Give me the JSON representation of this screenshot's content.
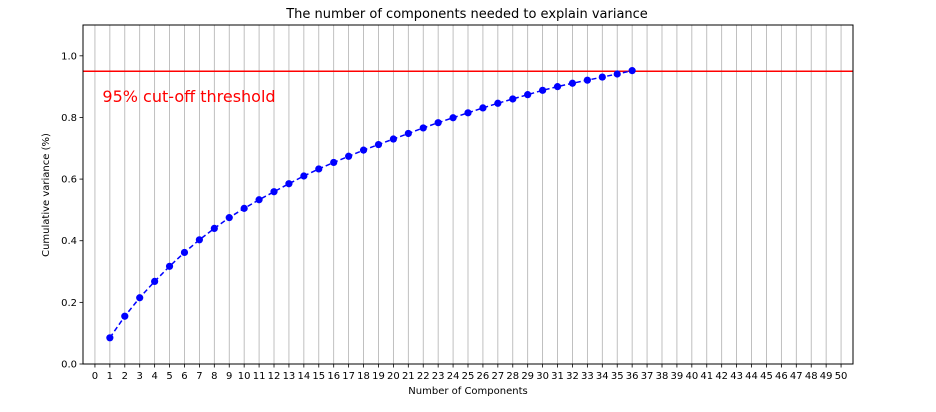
{
  "chart_data": {
    "type": "line",
    "title": "The number of components needed to explain variance",
    "xlabel": "Number of Components",
    "ylabel": "Cumulative variance (%)",
    "xlim": [
      -0.8,
      50.8
    ],
    "ylim": [
      0.0,
      1.1
    ],
    "x_ticks": [
      0,
      1,
      2,
      3,
      4,
      5,
      6,
      7,
      8,
      9,
      10,
      11,
      12,
      13,
      14,
      15,
      16,
      17,
      18,
      19,
      20,
      21,
      22,
      23,
      24,
      25,
      26,
      27,
      28,
      29,
      30,
      31,
      32,
      33,
      34,
      35,
      36,
      37,
      38,
      39,
      40,
      41,
      42,
      43,
      44,
      45,
      46,
      47,
      48,
      49,
      50
    ],
    "y_ticks": [
      0.0,
      0.2,
      0.4,
      0.6,
      0.8,
      1.0
    ],
    "y_tick_labels": [
      "0.0",
      "0.2",
      "0.4",
      "0.6",
      "0.8",
      "1.0"
    ],
    "grid": "vertical",
    "series": [
      {
        "color": "#0000ff",
        "style": "dashed line with circle markers",
        "x": [
          1,
          2,
          3,
          4,
          5,
          6,
          7,
          8,
          9,
          10,
          11,
          12,
          13,
          14,
          15,
          16,
          17,
          18,
          19,
          20,
          21,
          22,
          23,
          24,
          25,
          26,
          27,
          28,
          29,
          30,
          31,
          32,
          33,
          34,
          35,
          36
        ],
        "y": [
          0.085,
          0.155,
          0.215,
          0.268,
          0.317,
          0.362,
          0.403,
          0.44,
          0.475,
          0.505,
          0.533,
          0.559,
          0.585,
          0.61,
          0.633,
          0.654,
          0.674,
          0.694,
          0.712,
          0.73,
          0.748,
          0.766,
          0.783,
          0.799,
          0.815,
          0.831,
          0.846,
          0.86,
          0.874,
          0.888,
          0.9,
          0.911,
          0.921,
          0.931,
          0.941,
          0.952
        ]
      }
    ],
    "threshold": {
      "y": 0.95,
      "color": "#ff0000",
      "label": "95% cut-off threshold",
      "label_x": 0.5,
      "label_y": 0.85
    }
  }
}
